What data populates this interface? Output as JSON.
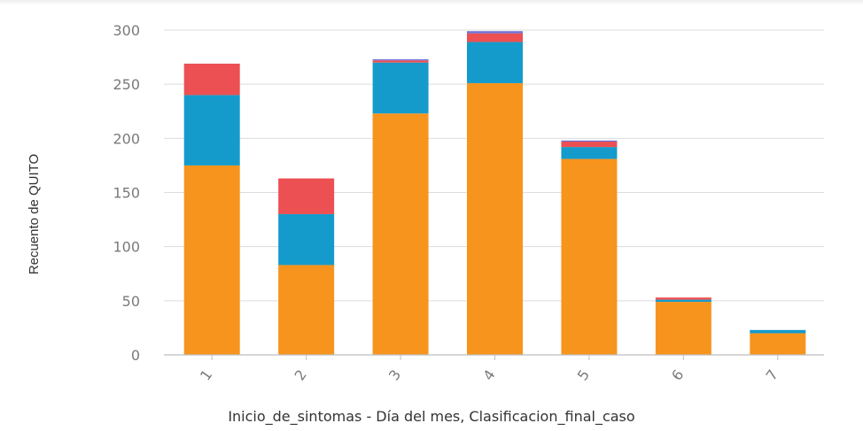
{
  "chart_data": {
    "type": "bar",
    "stacked": true,
    "title": "",
    "xlabel": "Inicio_de_sintomas - Día del mes, Clasificacion_final_caso",
    "ylabel": "Recuento de QUITO",
    "categories": [
      "1",
      "2",
      "3",
      "4",
      "5",
      "6",
      "7"
    ],
    "ylim": [
      0,
      300
    ],
    "yticks": [
      0,
      50,
      100,
      150,
      200,
      250,
      300
    ],
    "grid": true,
    "legend": "none",
    "series": [
      {
        "color": "#f7941d",
        "values": [
          175,
          83,
          223,
          251,
          181,
          49,
          20
        ]
      },
      {
        "color": "#149bcc",
        "values": [
          65,
          47,
          47,
          38,
          11,
          2,
          3
        ]
      },
      {
        "color": "#ec5052",
        "values": [
          29,
          33,
          2,
          8,
          5,
          2,
          0
        ]
      },
      {
        "color": "#6f6fd6",
        "values": [
          0,
          0,
          1,
          2,
          1,
          0,
          0
        ]
      }
    ]
  }
}
